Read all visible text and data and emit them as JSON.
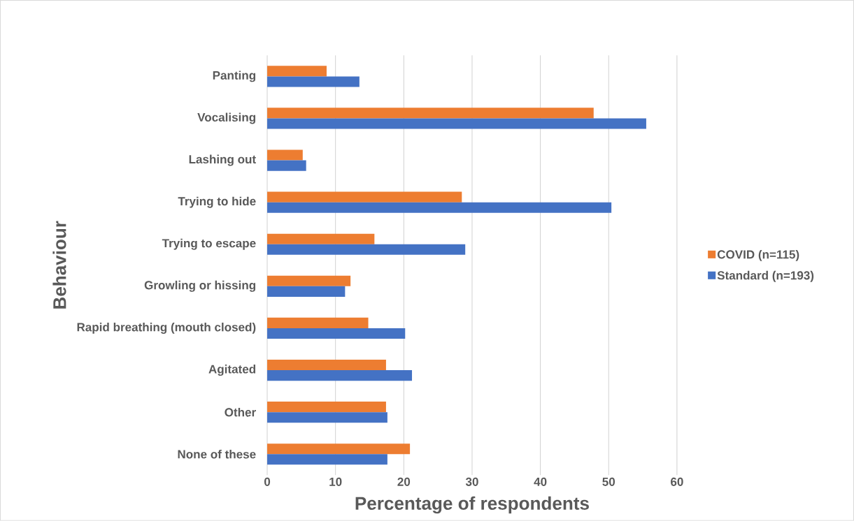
{
  "chart_data": {
    "type": "bar",
    "orientation": "horizontal",
    "categories": [
      "Panting",
      "Vocalising",
      "Lashing out",
      "Trying to hide",
      "Trying to escape",
      "Growling or hissing",
      "Rapid breathing (mouth closed)",
      "Agitated",
      "Other",
      "None of these"
    ],
    "series": [
      {
        "name": "COVID (n=115)",
        "color": "#ed7d31",
        "values": [
          8.7,
          47.8,
          5.2,
          28.5,
          15.7,
          12.2,
          14.8,
          17.4,
          17.4,
          20.9
        ]
      },
      {
        "name": "Standard (n=193)",
        "color": "#4472c4",
        "values": [
          13.5,
          55.5,
          5.7,
          50.4,
          29.0,
          11.4,
          20.2,
          21.2,
          17.6,
          17.6
        ]
      }
    ],
    "xlim": [
      0,
      60
    ],
    "xticks": [
      0,
      10,
      20,
      30,
      40,
      50,
      60
    ],
    "xlabel": "Percentage of respondents",
    "ylabel": "Behaviour",
    "grid": "x",
    "legend": "right"
  }
}
